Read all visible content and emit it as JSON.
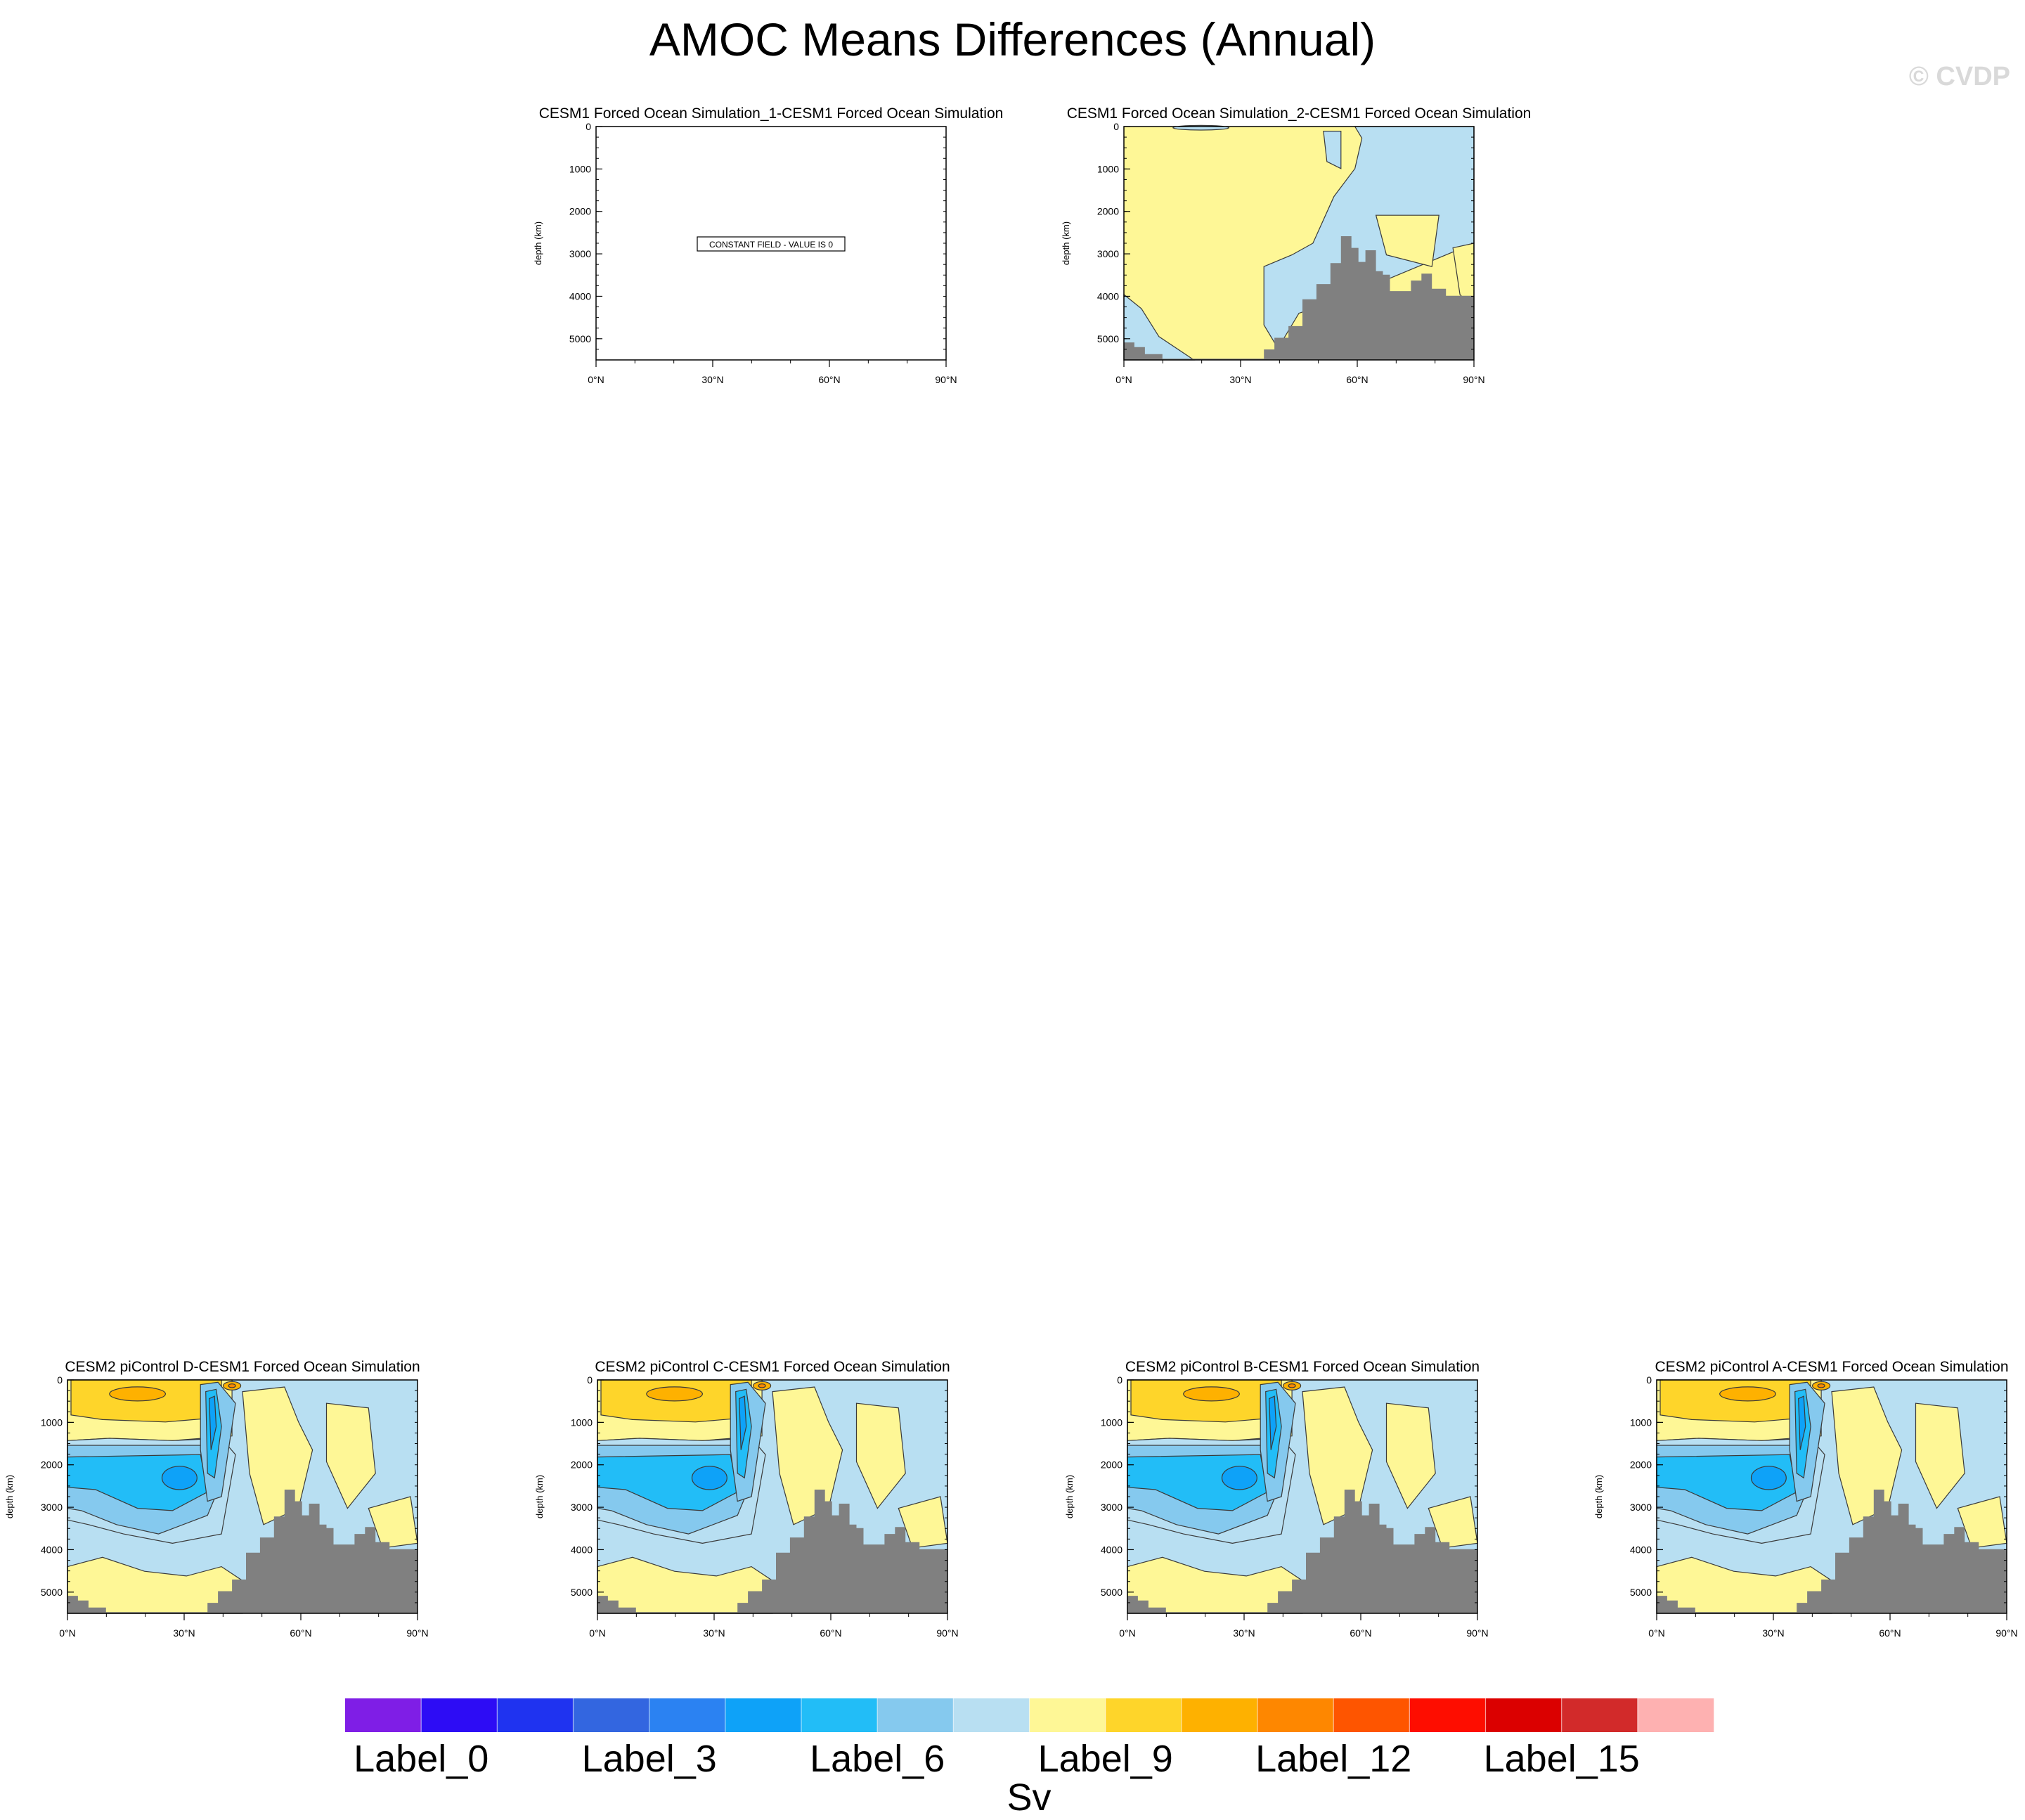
{
  "page": {
    "title": "AMOC Means Differences (Annual)",
    "watermark": "© CVDP"
  },
  "colors": {
    "land": "#808080",
    "contour_line": "#3a3a3a",
    "frame": "#000000"
  },
  "chart_data": [
    {
      "type": "heatmap",
      "title": "CESM1 Forced Ocean Simulation_1-CESM1 Forced Ocean Simulation",
      "ylabel": "depth (km)",
      "xlabel": "",
      "xticks": [
        "0°N",
        "30°N",
        "60°N",
        "90°N"
      ],
      "yticks": [
        "0",
        "1000",
        "2000",
        "3000",
        "4000",
        "5000"
      ],
      "xlim": [
        0,
        90
      ],
      "ylim": [
        5500,
        0
      ],
      "constant": true,
      "constant_label": "CONSTANT FIELD - VALUE IS 0"
    },
    {
      "type": "heatmap",
      "title": "CESM1 Forced Ocean Simulation_2-CESM1 Forced Ocean Simulation",
      "ylabel": "depth (km)",
      "xlabel": "",
      "xticks": [
        "0°N",
        "30°N",
        "60°N",
        "90°N"
      ],
      "yticks": [
        "0",
        "1000",
        "2000",
        "3000",
        "4000",
        "5000"
      ],
      "xlim": [
        0,
        90
      ],
      "ylim": [
        5500,
        0
      ],
      "pattern": "mild"
    },
    {
      "type": "heatmap",
      "title": "CESM2 piControl D-CESM1 Forced Ocean Simulation",
      "ylabel": "depth (km)",
      "xlabel": "",
      "xticks": [
        "0°N",
        "30°N",
        "60°N",
        "90°N"
      ],
      "yticks": [
        "0",
        "1000",
        "2000",
        "3000",
        "4000",
        "5000"
      ],
      "xlim": [
        0,
        90
      ],
      "ylim": [
        5500,
        0
      ],
      "pattern": "strong"
    },
    {
      "type": "heatmap",
      "title": "CESM2 piControl C-CESM1 Forced Ocean Simulation",
      "ylabel": "depth (km)",
      "xlabel": "",
      "xticks": [
        "0°N",
        "30°N",
        "60°N",
        "90°N"
      ],
      "yticks": [
        "0",
        "1000",
        "2000",
        "3000",
        "4000",
        "5000"
      ],
      "xlim": [
        0,
        90
      ],
      "ylim": [
        5500,
        0
      ],
      "pattern": "strong"
    },
    {
      "type": "heatmap",
      "title": "CESM2 piControl B-CESM1 Forced Ocean Simulation",
      "ylabel": "depth (km)",
      "xlabel": "",
      "xticks": [
        "0°N",
        "30°N",
        "60°N",
        "90°N"
      ],
      "yticks": [
        "0",
        "1000",
        "2000",
        "3000",
        "4000",
        "5000"
      ],
      "xlim": [
        0,
        90
      ],
      "ylim": [
        5500,
        0
      ],
      "pattern": "strong"
    },
    {
      "type": "heatmap",
      "title": "CESM2 piControl A-CESM1 Forced Ocean Simulation",
      "ylabel": "depth (km)",
      "xlabel": "",
      "xticks": [
        "0°N",
        "30°N",
        "60°N",
        "90°N"
      ],
      "yticks": [
        "0",
        "1000",
        "2000",
        "3000",
        "4000",
        "5000"
      ],
      "xlim": [
        0,
        90
      ],
      "ylim": [
        5500,
        0
      ],
      "pattern": "strong"
    }
  ],
  "colorbar": {
    "unit": "Sv",
    "colors": [
      "#7f1ee6",
      "#2d0cf5",
      "#1f33f0",
      "#3366e0",
      "#2b82f2",
      "#0ea2f8",
      "#22bdf7",
      "#85c9ee",
      "#b8dff2",
      "#fef796",
      "#fed52a",
      "#feb100",
      "#fe8700",
      "#fe5500",
      "#fe0d00",
      "#db0000",
      "#d22a2a",
      "#feb1b1"
    ],
    "labels": [
      "Label_0",
      "Label_3",
      "Label_6",
      "Label_9",
      "Label_12",
      "Label_15"
    ]
  }
}
